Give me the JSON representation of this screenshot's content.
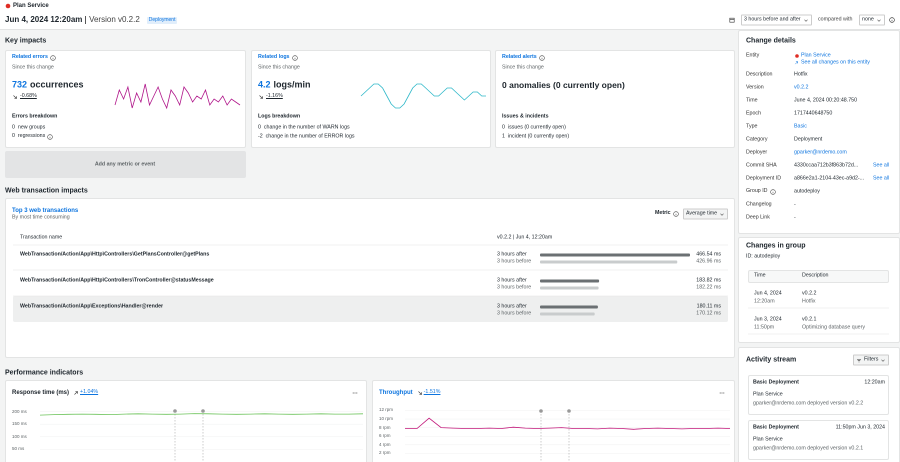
{
  "header": {
    "service": "Plan Service",
    "title": "Jun 4, 2024 12:20am",
    "version": "Version v0.2.2",
    "badge": "Deployment",
    "range": "3 hours before and after",
    "compared_label": "compared with",
    "compared": "none"
  },
  "key_impacts": {
    "title": "Key impacts",
    "add_metric": "Add any metric or event",
    "cards": [
      {
        "title": "Related errors",
        "info": true,
        "subtitle": "Since this change",
        "count": "732",
        "unit": "occurrences",
        "trend": "down",
        "change": "-0.68%",
        "color": "#b0168a",
        "sparkline": [
          3,
          8,
          5,
          9,
          2,
          7,
          4,
          10,
          3,
          6,
          9,
          5,
          2,
          8,
          6,
          3,
          9,
          7,
          4,
          6,
          5,
          8,
          3,
          5,
          4,
          6,
          3,
          5,
          4,
          3
        ],
        "breakdown_title": "Errors breakdown",
        "breakdown": [
          {
            "text": "0  new groups"
          },
          {
            "text": "0  regressions",
            "info": true
          }
        ]
      },
      {
        "title": "Related logs",
        "info": true,
        "subtitle": "Since this change",
        "count": "4.2",
        "unit": "logs/min",
        "trend": "down",
        "change": "-1.16%",
        "color": "#2fb8c9",
        "sparkline": [
          6,
          7,
          8,
          9,
          9,
          8,
          6,
          4,
          3,
          3,
          4,
          6,
          8,
          9,
          9,
          8,
          7,
          6,
          6,
          7,
          8,
          8,
          7,
          6,
          5,
          6,
          7,
          7,
          6,
          6
        ],
        "breakdown_title": "Logs breakdown",
        "breakdown": [
          {
            "text": "0  change in the number of WARN logs"
          },
          {
            "text": "-2  change in the number of ERROR logs"
          }
        ]
      },
      {
        "title": "Related alerts",
        "info": true,
        "subtitle": "Since this change",
        "summary": "0 anomalies (0 currently open)",
        "breakdown_title": "Issues & incidents",
        "breakdown": [
          {
            "text": "0  issues (0 currently open)"
          },
          {
            "text": "1  incident (0 currently open)"
          }
        ]
      }
    ]
  },
  "web_transactions": {
    "title": "Web transaction impacts",
    "list_title": "Top 3 web transactions",
    "list_subtitle": "By most time consuming",
    "metric_label": "Metric",
    "metric": "Average time",
    "col_name": "Transaction name",
    "col_version": "v0.2.2 | Jun 4, 12:20am",
    "after_label": "3 hours after",
    "before_label": "3 hours before",
    "rows": [
      {
        "name": "WebTransaction/Action/App\\Http\\Controllers\\GetPlansController@getPlans",
        "after": 466.54,
        "after_text": "466.54 ms",
        "before": 426.96,
        "before_text": "426.96 ms"
      },
      {
        "name": "WebTransaction/Action/App\\Http\\Controllers\\TronController@statusMessage",
        "after": 183.82,
        "after_text": "183.82 ms",
        "before": 182.22,
        "before_text": "182.22 ms"
      },
      {
        "name": "WebTransaction/Action/App\\Exceptions\\Handler@render",
        "after": 180.11,
        "after_text": "180.11 ms",
        "before": 170.12,
        "before_text": "170.12 ms"
      }
    ]
  },
  "performance": {
    "title": "Performance indicators",
    "charts": [
      {
        "title": "Response time (ms)",
        "trend": "up",
        "change": "+1.04%",
        "color": "#6cc35a",
        "ylim": [
          0,
          230
        ],
        "yticks": [
          {
            "value": 200,
            "label": "200 ms"
          },
          {
            "value": 150,
            "label": "150 ms"
          },
          {
            "value": 100,
            "label": "100 ms"
          },
          {
            "value": 50,
            "label": "50 ms"
          }
        ],
        "values": [
          186,
          188,
          189,
          190,
          189,
          188,
          190,
          191,
          190,
          189,
          190,
          192,
          191,
          190,
          189,
          190,
          191,
          190,
          189,
          190,
          191,
          190,
          190,
          191
        ]
      },
      {
        "title": "Throughput",
        "trend": "down",
        "change": "-1.51%",
        "color": "#c2187a",
        "ylim": [
          0,
          13.5
        ],
        "yticks": [
          {
            "value": 12,
            "label": "12 rpm"
          },
          {
            "value": 10,
            "label": "10 rpm"
          },
          {
            "value": 8,
            "label": "8 rpm"
          },
          {
            "value": 6,
            "label": "6 rpm"
          },
          {
            "value": 4,
            "label": "4 rpm"
          },
          {
            "value": 2,
            "label": "2 rpm"
          }
        ],
        "values": [
          7.8,
          7.8,
          10.2,
          8.0,
          7.9,
          7.8,
          7.8,
          7.9,
          7.8,
          8.1,
          7.9,
          7.8,
          7.9,
          8.0,
          7.8,
          7.8,
          7.7,
          7.9,
          7.8,
          7.6,
          7.8,
          7.9,
          7.8,
          7.7,
          7.8,
          7.8,
          7.9,
          7.8
        ]
      }
    ]
  },
  "change_details": {
    "title": "Change details",
    "rows": [
      {
        "key": "Entity",
        "link": "Plan Service",
        "sublink": "See all changes on this entity"
      },
      {
        "key": "Description",
        "value": "Hotfix"
      },
      {
        "key": "Version",
        "link": "v0.2.2"
      },
      {
        "key": "Time",
        "value": "June 4, 2024 00:20:48.750"
      },
      {
        "key": "Epoch",
        "value": "1717440648750"
      },
      {
        "key": "Type",
        "link": "Basic"
      },
      {
        "key": "Category",
        "value": "Deployment"
      },
      {
        "key": "Deployer",
        "link": "gparker@nrdemo.com"
      },
      {
        "key": "Commit SHA",
        "value": "4330ccaa712b3f863b72d...",
        "action": "See all"
      },
      {
        "key": "Deployment ID",
        "value": "a866e2a1-2104-43ec-a9d2-...",
        "action": "See all"
      },
      {
        "key": "Group ID",
        "info": true,
        "value": "autodeploy"
      },
      {
        "key": "Changelog",
        "value": "-"
      },
      {
        "key": "Deep Link",
        "value": "-"
      }
    ]
  },
  "changes_in_group": {
    "title": "Changes in group",
    "id": "ID: autodeploy",
    "col_time": "Time",
    "col_desc": "Description",
    "rows": [
      {
        "date": "Jun 4, 2024",
        "time": "12:20am",
        "version": "v0.2.2",
        "desc": "Hotfix"
      },
      {
        "date": "Jun 3, 2024",
        "time": "11:50pm",
        "version": "v0.2.1",
        "desc": "Optimizing database query"
      }
    ]
  },
  "activity": {
    "title": "Activity stream",
    "filters": "Filters",
    "items": [
      {
        "type": "Basic Deployment",
        "time": "12:20am",
        "entity": "Plan Service",
        "text": "gparker@nrdemo.com deployed version v0.2.2"
      },
      {
        "type": "Basic Deployment",
        "time": "11:50pm Jun 3, 2024",
        "entity": "Plan Service",
        "text": "gparker@nrdemo.com deployed version v0.2.1"
      }
    ]
  }
}
